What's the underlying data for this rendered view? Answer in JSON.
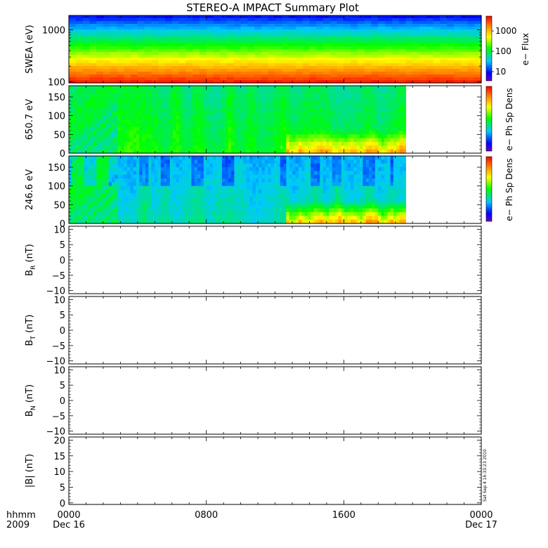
{
  "title": "STEREO-A IMPACT Summary Plot",
  "timestamp": "Sat Sep  4 16:33:23 2010",
  "time_axis": {
    "row1_label": "hhmm",
    "row2_label": "2009",
    "ticks": [
      {
        "time": "0000",
        "date": "Dec 16"
      },
      {
        "time": "0800",
        "date": ""
      },
      {
        "time": "1600",
        "date": ""
      },
      {
        "time": "0000",
        "date": "Dec 17"
      }
    ]
  },
  "chart_data": [
    {
      "id": "swea",
      "type": "heatmap",
      "ylabel": "SWEA (eV)",
      "y_scale": "log",
      "ylim": [
        95,
        1900
      ],
      "yticks": [
        "1000",
        "100"
      ],
      "xlim_hours": [
        0,
        24
      ],
      "data_end_hours": 24,
      "colorbar": {
        "label": "e− Flux",
        "scale": "log",
        "ticks": [
          "1000",
          "100",
          "10"
        ]
      }
    },
    {
      "id": "pad650",
      "type": "heatmap",
      "ylabel": "650.7 eV",
      "ylim": [
        0,
        180
      ],
      "yticks": [
        "150",
        "100",
        "50",
        "0"
      ],
      "xlim_hours": [
        0,
        24
      ],
      "data_end_hours": 19.6,
      "colorbar": {
        "label": "e− Ph Sp Dens"
      }
    },
    {
      "id": "pad246",
      "type": "heatmap",
      "ylabel": "246.6 eV",
      "ylim": [
        0,
        180
      ],
      "yticks": [
        "150",
        "100",
        "50",
        "0"
      ],
      "xlim_hours": [
        0,
        24
      ],
      "data_end_hours": 19.6,
      "colorbar": {
        "label": "e− Ph Sp Dens"
      }
    },
    {
      "id": "br",
      "type": "line",
      "ylabel_main": "B",
      "ylabel_sub": "R",
      "ylabel_unit": " (nT)",
      "ylim": [
        -11,
        11
      ],
      "yticks": [
        "10",
        "5",
        "0",
        "−5",
        "−10"
      ],
      "series": []
    },
    {
      "id": "bt",
      "type": "line",
      "ylabel_main": "B",
      "ylabel_sub": "T",
      "ylabel_unit": " (nT)",
      "ylim": [
        -11,
        11
      ],
      "yticks": [
        "10",
        "5",
        "0",
        "−5",
        "−10"
      ],
      "series": []
    },
    {
      "id": "bn",
      "type": "line",
      "ylabel_main": "B",
      "ylabel_sub": "N",
      "ylabel_unit": " (nT)",
      "ylim": [
        -11,
        11
      ],
      "yticks": [
        "10",
        "5",
        "0",
        "−5",
        "−10"
      ],
      "series": []
    },
    {
      "id": "bmag",
      "type": "line",
      "ylabel_main": "|B| (nT)",
      "ylim": [
        -0.5,
        21
      ],
      "yticks": [
        "20",
        "15",
        "10",
        "5",
        "0"
      ],
      "series": []
    }
  ]
}
